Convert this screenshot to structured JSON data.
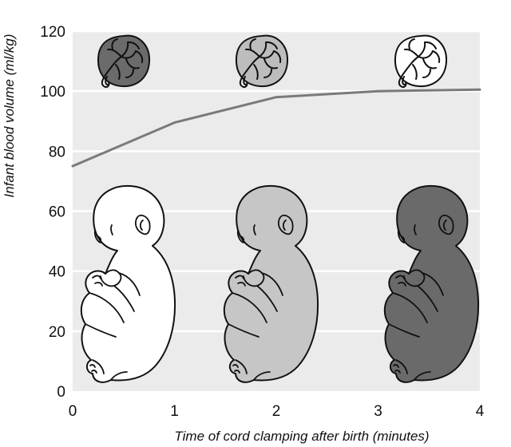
{
  "chart_data": {
    "type": "line",
    "xlabel": "Time of cord clamping after birth (minutes)",
    "ylabel": "Infant blood volume (ml/kg)",
    "x_ticks": [
      "0",
      "1",
      "2",
      "3",
      "4"
    ],
    "y_ticks": [
      "0",
      "20",
      "40",
      "60",
      "80",
      "100",
      "120"
    ],
    "xlim": [
      0,
      4
    ],
    "ylim": [
      0,
      120
    ],
    "grid": "horizontal",
    "series": [
      {
        "x": [
          0,
          1,
          2,
          3,
          4
        ],
        "y": [
          75,
          89.5,
          98,
          100,
          100.5
        ]
      }
    ],
    "placenta_tones": [
      "dark",
      "medium",
      "light"
    ],
    "infant_tones": [
      "white",
      "light-grey",
      "dark-grey"
    ]
  },
  "colors": {
    "plot_background": "#ebebeb",
    "gridline": "#ffffff",
    "line": "#7a7a7a",
    "tone_dark": "#6b6b6b",
    "tone_medium": "#bdbdbd",
    "tone_light": "#ffffff",
    "tone_white": "#ffffff",
    "tone_light_grey": "#c6c6c6",
    "tone_dark_grey": "#6a6a6a"
  }
}
